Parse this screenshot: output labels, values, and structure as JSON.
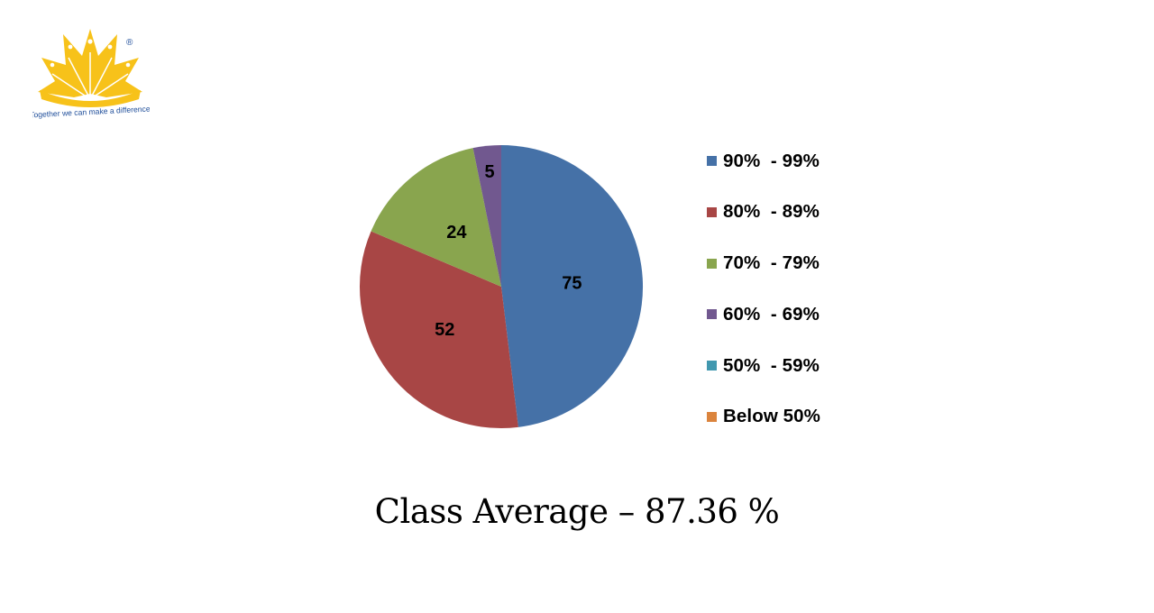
{
  "logo": {
    "icon": "sun-logo-icon",
    "tagline": "Together we can make a difference",
    "trademark": "®",
    "color": "#F7C21A",
    "text_color": "#1F4E9A"
  },
  "chart_data": {
    "type": "pie",
    "categories": [
      "90%  - 99%",
      "80%  - 89%",
      "70%  - 79%",
      "60%  - 69%",
      "50%  - 59%",
      "Below 50%"
    ],
    "values": [
      75,
      52,
      24,
      5,
      0,
      0
    ],
    "data_labels": [
      "75",
      "52",
      "24",
      "5",
      "",
      ""
    ],
    "colors": [
      "#4571A7",
      "#A84645",
      "#89A54E",
      "#71588F",
      "#4198AF",
      "#DB843D"
    ],
    "legend_position": "right",
    "start_angle": "top, clockwise"
  },
  "footer": {
    "text": "Class Average – 87.36 %"
  }
}
